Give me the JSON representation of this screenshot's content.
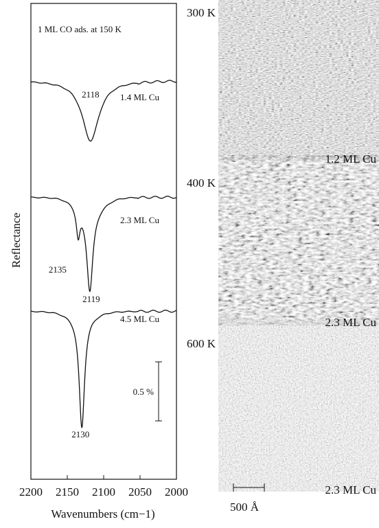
{
  "spectra": {
    "annotation": "1 ML CO ads. at 150 K",
    "y_label": "Reflectance",
    "x_label": "Wavenumbers (cm−1)",
    "xlim": [
      2200,
      2000
    ],
    "xticks": [
      2200,
      2150,
      2100,
      2050,
      2000
    ],
    "scale_bar": "0.5 %",
    "traces": [
      {
        "label": "1.4 ML Cu",
        "peaks": [
          2118
        ]
      },
      {
        "label": "2.3 ML Cu",
        "peaks": [
          2135,
          2119
        ]
      },
      {
        "label": "4.5 ML Cu",
        "peaks": [
          2130
        ]
      }
    ]
  },
  "images": [
    {
      "temperature": "300 K",
      "coverage": "1.2 ML Cu"
    },
    {
      "temperature": "400 K",
      "coverage": "2.3 ML Cu"
    },
    {
      "temperature": "600 K",
      "coverage": "2.3 ML Cu"
    }
  ],
  "length_scale": "500 Å"
}
